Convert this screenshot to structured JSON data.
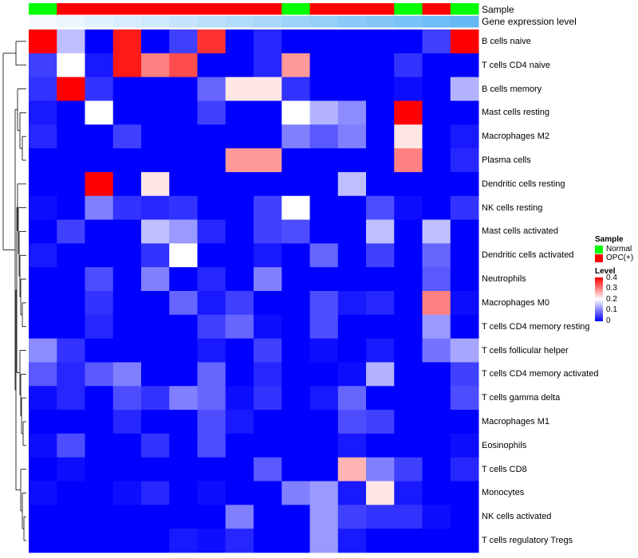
{
  "chart_data": {
    "type": "heatmap",
    "title": "",
    "annotations": {
      "sample_label": "Sample",
      "level_label": "Gene expression level",
      "sample": [
        "Normal",
        "OPC(+)",
        "OPC(+)",
        "OPC(+)",
        "OPC(+)",
        "OPC(+)",
        "OPC(+)",
        "OPC(+)",
        "OPC(+)",
        "Normal",
        "OPC(+)",
        "OPC(+)",
        "OPC(+)",
        "Normal",
        "OPC(+)",
        "Normal"
      ],
      "gene_level": [
        0.0,
        0.02,
        0.04,
        0.06,
        0.08,
        0.1,
        0.12,
        0.14,
        0.16,
        0.18,
        0.2,
        0.22,
        0.24,
        0.26,
        0.28,
        0.3
      ]
    },
    "rows": [
      "B cells naive",
      "T cells CD4 naive",
      "B cells memory",
      "Mast cells resting",
      "Macrophages M2",
      "Plasma cells",
      "Dendritic cells resting",
      "NK cells resting",
      "Mast cells activated",
      "Dendritic cells activated",
      "Neutrophils",
      "Macrophages M0",
      "T cells CD4 memory resting",
      "T cells follicular helper",
      "T cells CD4 memory activated",
      "T cells gamma delta",
      "Macrophages M1",
      "Eosinophils",
      "T cells CD8",
      "Monocytes",
      "NK cells activated",
      "T cells regulatory  Tregs"
    ],
    "values": [
      [
        0.4,
        0.15,
        0.0,
        0.38,
        0.0,
        0.05,
        0.36,
        0.0,
        0.03,
        0.0,
        0.0,
        0.0,
        0.0,
        0.0,
        0.05,
        0.4
      ],
      [
        0.05,
        0.2,
        0.02,
        0.38,
        0.3,
        0.34,
        0.0,
        0.0,
        0.03,
        0.28,
        0.0,
        0.0,
        0.0,
        0.04,
        0.0,
        0.0
      ],
      [
        0.04,
        0.4,
        0.04,
        0.0,
        0.0,
        0.0,
        0.08,
        0.22,
        0.22,
        0.04,
        0.0,
        0.0,
        0.0,
        0.01,
        0.0,
        0.14
      ],
      [
        0.02,
        0.0,
        0.2,
        0.0,
        0.0,
        0.0,
        0.05,
        0.0,
        0.0,
        0.2,
        0.14,
        0.11,
        0.0,
        0.4,
        0.0,
        0.0
      ],
      [
        0.03,
        0.0,
        0.0,
        0.05,
        0.0,
        0.0,
        0.0,
        0.0,
        0.0,
        0.1,
        0.07,
        0.1,
        0.0,
        0.22,
        0.0,
        0.02
      ],
      [
        0.0,
        0.0,
        0.0,
        0.0,
        0.0,
        0.0,
        0.0,
        0.28,
        0.28,
        0.0,
        0.0,
        0.0,
        0.0,
        0.3,
        0.0,
        0.03
      ],
      [
        0.0,
        0.0,
        0.4,
        0.0,
        0.22,
        0.0,
        0.0,
        0.0,
        0.0,
        0.0,
        0.0,
        0.15,
        0.0,
        0.0,
        0.0,
        0.0
      ],
      [
        0.01,
        0.0,
        0.1,
        0.04,
        0.03,
        0.04,
        0.0,
        0.0,
        0.05,
        0.2,
        0.0,
        0.0,
        0.06,
        0.01,
        0.0,
        0.04
      ],
      [
        0.0,
        0.05,
        0.0,
        0.0,
        0.15,
        0.12,
        0.03,
        0.0,
        0.05,
        0.06,
        0.0,
        0.0,
        0.15,
        0.0,
        0.15,
        0.0
      ],
      [
        0.02,
        0.0,
        0.0,
        0.0,
        0.04,
        0.2,
        0.0,
        0.0,
        0.02,
        0.0,
        0.08,
        0.0,
        0.05,
        0.0,
        0.08,
        0.0
      ],
      [
        0.0,
        0.0,
        0.06,
        0.0,
        0.1,
        0.0,
        0.03,
        0.0,
        0.1,
        0.0,
        0.0,
        0.0,
        0.0,
        0.0,
        0.07,
        0.0
      ],
      [
        0.0,
        0.0,
        0.04,
        0.0,
        0.0,
        0.08,
        0.02,
        0.05,
        0.0,
        0.0,
        0.06,
        0.02,
        0.03,
        0.0,
        0.3,
        0.01
      ],
      [
        0.0,
        0.0,
        0.03,
        0.0,
        0.0,
        0.0,
        0.05,
        0.08,
        0.01,
        0.0,
        0.06,
        0.0,
        0.0,
        0.0,
        0.12,
        0.0
      ],
      [
        0.11,
        0.04,
        0.0,
        0.0,
        0.0,
        0.0,
        0.02,
        0.0,
        0.05,
        0.0,
        0.01,
        0.0,
        0.02,
        0.0,
        0.09,
        0.13
      ],
      [
        0.07,
        0.03,
        0.07,
        0.1,
        0.0,
        0.0,
        0.08,
        0.0,
        0.03,
        0.0,
        0.0,
        0.01,
        0.14,
        0.0,
        0.0,
        0.05
      ],
      [
        0.01,
        0.03,
        0.0,
        0.06,
        0.04,
        0.1,
        0.08,
        0.01,
        0.04,
        0.0,
        0.02,
        0.08,
        0.0,
        0.0,
        0.0,
        0.06
      ],
      [
        0.0,
        0.0,
        0.0,
        0.03,
        0.0,
        0.0,
        0.06,
        0.02,
        0.0,
        0.0,
        0.0,
        0.06,
        0.05,
        0.0,
        0.0,
        0.0
      ],
      [
        0.01,
        0.06,
        0.0,
        0.0,
        0.04,
        0.0,
        0.06,
        0.0,
        0.0,
        0.0,
        0.0,
        0.02,
        0.0,
        0.0,
        0.0,
        0.01
      ],
      [
        0.0,
        0.01,
        0.0,
        0.0,
        0.0,
        0.0,
        0.0,
        0.0,
        0.07,
        0.0,
        0.0,
        0.26,
        0.1,
        0.05,
        0.0,
        0.03
      ],
      [
        0.01,
        0.0,
        0.0,
        0.01,
        0.03,
        0.0,
        0.01,
        0.0,
        0.0,
        0.1,
        0.12,
        0.02,
        0.22,
        0.02,
        0.0,
        0.0
      ],
      [
        0.0,
        0.0,
        0.0,
        0.0,
        0.0,
        0.0,
        0.0,
        0.1,
        0.0,
        0.0,
        0.12,
        0.05,
        0.04,
        0.04,
        0.01,
        0.0
      ],
      [
        0.0,
        0.0,
        0.0,
        0.0,
        0.0,
        0.02,
        0.01,
        0.03,
        0.0,
        0.0,
        0.12,
        0.02,
        0.0,
        0.0,
        0.0,
        0.0
      ]
    ],
    "legend": {
      "sample_title": "Sample",
      "sample_entries": [
        {
          "label": "Normal",
          "color": "#00ff00"
        },
        {
          "label": "OPC(+)",
          "color": "#ff0000"
        }
      ],
      "level_title": "Level",
      "level_ticks": [
        "0.4",
        "0.3",
        "0.2",
        "0.1",
        "0"
      ],
      "level_tick_values": [
        0.4,
        0.3,
        0.2,
        0.1,
        0
      ],
      "placement": "right"
    },
    "colorscale": {
      "min": 0,
      "mid": 0.2,
      "max": 0.4,
      "low": "#0000ff",
      "midcolor": "#ffffff",
      "high": "#ff0000"
    }
  }
}
